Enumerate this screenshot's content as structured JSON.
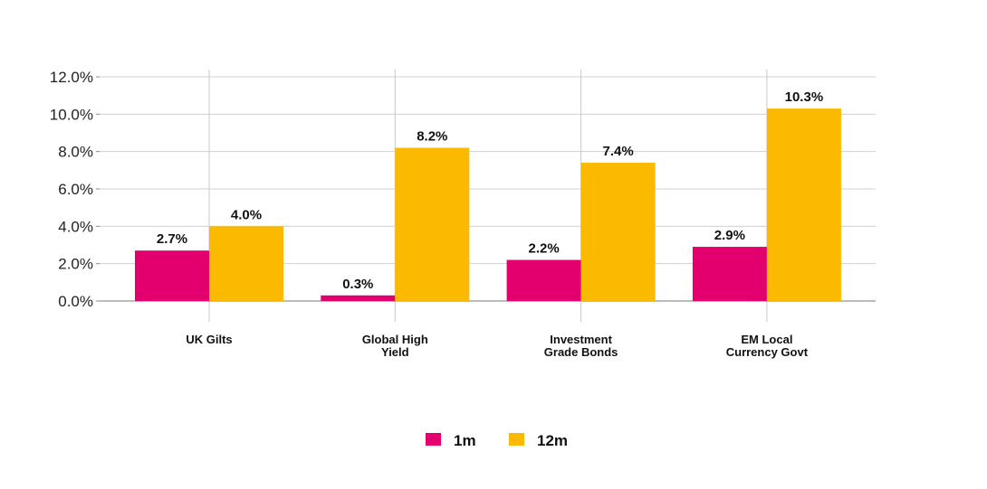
{
  "chart_data": {
    "type": "bar",
    "categories": [
      [
        "UK Gilts"
      ],
      [
        "Global High",
        "Yield"
      ],
      [
        "Investment",
        "Grade Bonds"
      ],
      [
        "EM Local",
        "Currency Govt"
      ]
    ],
    "series": [
      {
        "name": "1m",
        "color": "#E3006E",
        "values": [
          2.7,
          0.3,
          2.2,
          2.9
        ],
        "labels": [
          "2.7%",
          "0.3%",
          "2.2%",
          "2.9%"
        ]
      },
      {
        "name": "12m",
        "color": "#FBB900",
        "values": [
          4.0,
          8.2,
          7.4,
          10.3
        ],
        "labels": [
          "4.0%",
          "8.2%",
          "7.4%",
          "10.3%"
        ]
      }
    ],
    "ylim": [
      0,
      12
    ],
    "yticks": [
      "0.0%",
      "2.0%",
      "4.0%",
      "6.0%",
      "8.0%",
      "10.0%",
      "12.0%"
    ],
    "grid": true,
    "legend": "bottom",
    "title": "",
    "xlabel": "",
    "ylabel": ""
  }
}
